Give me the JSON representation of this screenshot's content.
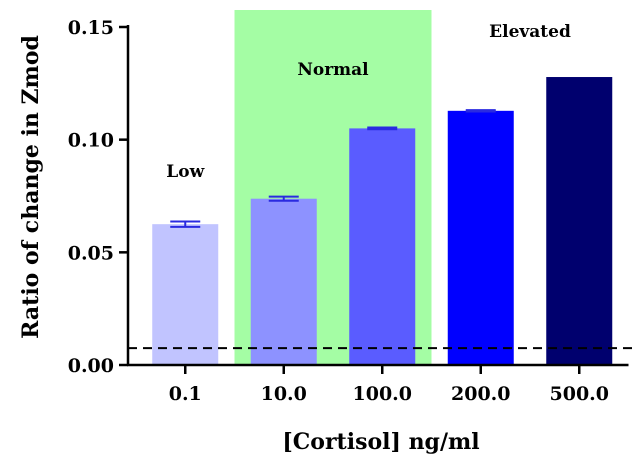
{
  "chart_data": {
    "type": "bar",
    "categories": [
      "0.1",
      "10.0",
      "100.0",
      "200.0",
      "500.0"
    ],
    "values": [
      0.0625,
      0.0738,
      0.105,
      0.1128,
      0.1278
    ],
    "errors": [
      0.0012,
      0.0009,
      0.0004,
      0.0003,
      0.0
    ],
    "bar_colors": [
      "#c1c4ff",
      "#8d92ff",
      "#5a5cff",
      "#0000ff",
      "#00006e"
    ],
    "error_bar_color": "#2a2ae0",
    "xlabel": "[Cortisol] ng/ml",
    "ylabel": "Ratio of change in Zmod",
    "ylim": [
      0.0,
      0.15
    ],
    "yticks": [
      "0.00",
      "0.05",
      "0.10",
      "0.15"
    ],
    "ytick_values": [
      0.0,
      0.05,
      0.1,
      0.15
    ],
    "threshold": {
      "value": 0.0075,
      "style": "dashed",
      "color": "#000000"
    },
    "highlight_region": {
      "from_category": "10.0",
      "to_category": "100.0",
      "color": "#a4fda4"
    },
    "zone_labels": [
      {
        "text": "Low",
        "category": "0.1"
      },
      {
        "text": "Normal",
        "category": "10.0-100.0"
      },
      {
        "text": "Elevated",
        "category": "200.0-500.0"
      }
    ],
    "grid": false,
    "legend": "none"
  }
}
